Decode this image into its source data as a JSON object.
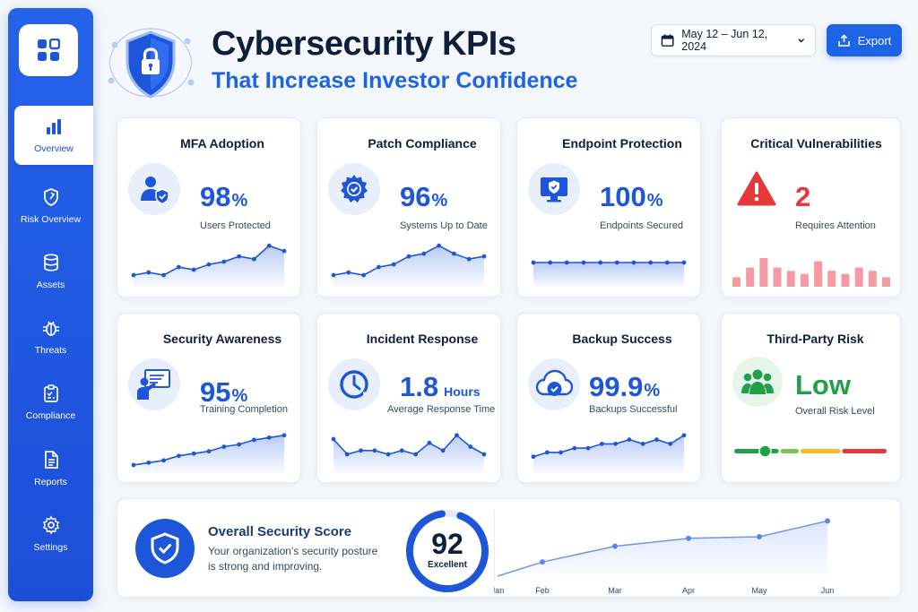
{
  "sidebar": {
    "items": [
      {
        "label": "Overview",
        "icon": "bar-chart-icon",
        "active": true
      },
      {
        "label": "Risk Overview",
        "icon": "shield-icon",
        "active": false
      },
      {
        "label": "Assets",
        "icon": "database-icon",
        "active": false
      },
      {
        "label": "Threats",
        "icon": "bug-icon",
        "active": false
      },
      {
        "label": "Compliance",
        "icon": "clipboard-check-icon",
        "active": false
      },
      {
        "label": "Reports",
        "icon": "document-icon",
        "active": false
      },
      {
        "label": "Settings",
        "icon": "gear-icon",
        "active": false
      }
    ]
  },
  "header": {
    "title": "Cybersecurity KPIs",
    "subtitle": "That Increase Investor Confidence",
    "date_range": "May 12 – Jun 12, 2024",
    "export_label": "Export"
  },
  "colors": {
    "primary": "#1d56d8",
    "accent": "#1d63e6",
    "danger": "#e5383b",
    "success": "#22a049",
    "warning": "#f5b92b"
  },
  "kpis": [
    {
      "title": "MFA Adoption",
      "value": "98",
      "unit": "%",
      "caption": "Users Protected",
      "icon": "user-shield-icon",
      "trend": [
        3,
        4,
        3,
        6,
        5,
        7,
        8,
        10,
        9,
        14,
        12
      ]
    },
    {
      "title": "Patch Compliance",
      "value": "96",
      "unit": "%",
      "caption": "Systems Up to Date",
      "icon": "gear-check-icon",
      "trend": [
        3,
        4,
        3,
        6,
        7,
        10,
        11,
        14,
        11,
        9,
        10
      ]
    },
    {
      "title": "Endpoint Protection",
      "value": "100",
      "unit": "%",
      "caption": "Endpoints Secured",
      "icon": "monitor-shield-icon",
      "trend": [
        10,
        10,
        10,
        10,
        10,
        10,
        10,
        10,
        10,
        10
      ]
    },
    {
      "title": "Critical Vulnerabilities",
      "value": "2",
      "unit": "",
      "caption": "Requires Attention",
      "icon": "warning-icon",
      "bars": [
        3,
        6,
        9,
        6,
        5,
        4,
        8,
        5,
        4,
        6,
        5,
        3
      ]
    },
    {
      "title": "Security Awareness",
      "value": "95",
      "unit": "%",
      "caption": "Training Completion",
      "icon": "training-icon",
      "trend": [
        2,
        3,
        4,
        6,
        7,
        8,
        10,
        11,
        13,
        14,
        15
      ]
    },
    {
      "title": "Incident Response",
      "value": "1.8",
      "unit": "Hours",
      "caption": "Average Response Time",
      "icon": "clock-icon",
      "trend": [
        8,
        4,
        5,
        5,
        4,
        5,
        4,
        7,
        5,
        9,
        6,
        4
      ]
    },
    {
      "title": "Backup Success",
      "value": "99.9",
      "unit": "%",
      "caption": "Backups Successful",
      "icon": "cloud-check-icon",
      "trend": [
        3,
        4,
        4,
        5,
        5,
        6,
        6,
        7,
        6,
        7,
        6,
        8
      ]
    },
    {
      "title": "Third-Party Risk",
      "value": "Low",
      "unit": "",
      "caption": "Overall Risk Level",
      "icon": "users-icon",
      "risk_level": 0.2
    }
  ],
  "overall": {
    "title": "Overall Security Score",
    "description": "Your organization's security posture is strong and improving.",
    "score": "92",
    "score_value": 92,
    "score_label": "Excellent",
    "months": [
      "Jan",
      "Feb",
      "Mar",
      "Apr",
      "May",
      "Jun"
    ],
    "trend": [
      0,
      18,
      38,
      48,
      50,
      70
    ]
  }
}
